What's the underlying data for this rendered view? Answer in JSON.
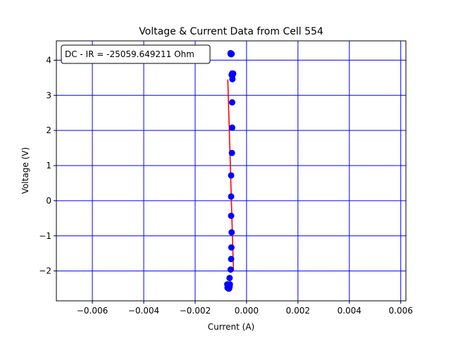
{
  "chart_data": {
    "type": "scatter",
    "title": "Voltage & Current Data from Cell 554",
    "xlabel": "Current (A)",
    "ylabel": "Voltage (V)",
    "xlim": [
      -0.0074,
      0.0062
    ],
    "ylim": [
      -2.85,
      4.55
    ],
    "xticks": [
      -0.006,
      -0.004,
      -0.002,
      0.0,
      0.002,
      0.004,
      0.006
    ],
    "xtick_labels": [
      "−0.006",
      "−0.004",
      "−0.002",
      "0.000",
      "0.002",
      "0.004",
      "0.006"
    ],
    "yticks": [
      -2,
      -1,
      0,
      1,
      2,
      3,
      4
    ],
    "ytick_labels": [
      "−2",
      "−1",
      "0",
      "1",
      "2",
      "3",
      "4"
    ],
    "grid": true,
    "grid_color": "#0000ff",
    "annotation": "DC - IR = -25059.649211 Ohm",
    "annotation_position": "top-left",
    "colors": {
      "points": "#0000ff",
      "fit_line": "#ff0000"
    },
    "series": [
      {
        "kind": "scatter",
        "x": [
          -0.00075,
          -0.00074,
          -0.0007,
          -0.00068,
          -0.00066,
          -0.00065,
          -0.00066,
          -0.00062,
          -0.0006,
          -0.00059,
          -0.00058,
          -0.0006,
          -0.0006,
          -0.0006,
          -0.00057,
          -0.00056,
          -0.00056,
          -0.00055,
          -0.00054,
          -0.00056,
          -0.00056,
          -0.00062,
          -0.0006,
          -0.00058,
          -0.00052,
          -0.00058,
          -0.00062
        ],
        "y": [
          -2.38,
          -2.48,
          -2.5,
          -2.5,
          -2.45,
          -2.38,
          -2.2,
          -1.96,
          -1.66,
          -1.33,
          -0.9,
          -0.43,
          0.12,
          0.72,
          1.36,
          2.08,
          2.8,
          3.46,
          3.58,
          3.6,
          3.62,
          4.18,
          4.17,
          4.18,
          3.62,
          3.58,
          4.2
        ]
      },
      {
        "kind": "line",
        "x": [
          -0.00073,
          -0.00051
        ],
        "y": [
          3.45,
          -1.98
        ]
      }
    ]
  }
}
